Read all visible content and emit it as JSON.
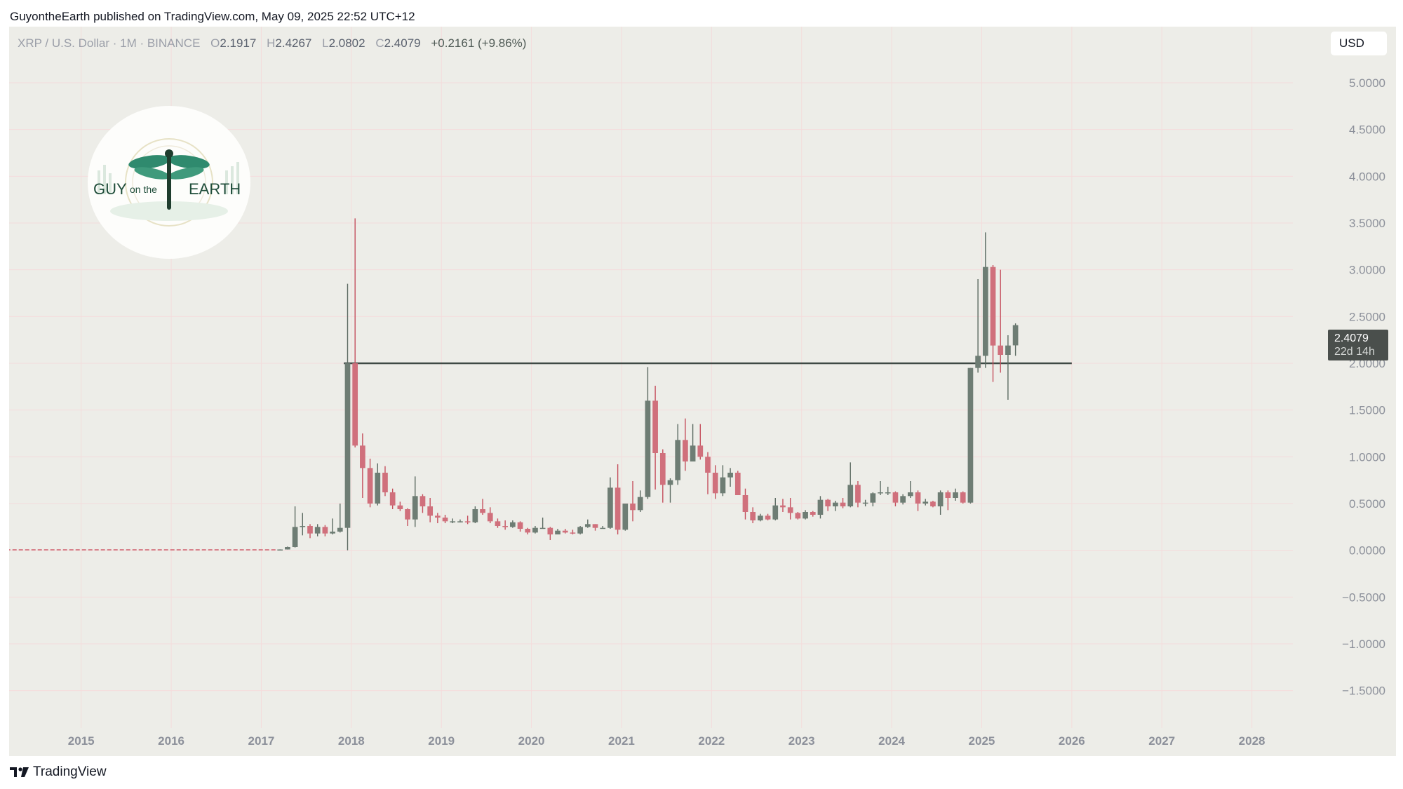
{
  "attribution": "GuyontheEarth published on TradingView.com, May 09, 2025 22:52 UTC+12",
  "legend": {
    "symbol": "XRP / U.S. Dollar · 1M · BINANCE",
    "o_label": "O",
    "o_value": "2.1917",
    "h_label": "H",
    "h_value": "2.4267",
    "l_label": "L",
    "l_value": "2.0802",
    "c_label": "C",
    "c_value": "2.4079",
    "change": "+0.2161 (+9.86%)"
  },
  "currency": "USD",
  "price_label": {
    "value": "2.4079",
    "countdown": "22d 14h"
  },
  "logo_text": {
    "left": "GUY",
    "middle": "on the",
    "right": "EARTH"
  },
  "branding": "TradingView",
  "colors": {
    "up": "#6e7d74",
    "down": "#d0707c",
    "up_wick": "#5c6b62",
    "down_wick": "#c5505e",
    "pre_line": "#d7838c",
    "level_line": "#3f4a45"
  },
  "chart_data": {
    "type": "candlestick",
    "symbol": "XRP / U.S. Dollar",
    "interval": "1M",
    "exchange": "BINANCE",
    "y_ticks": [
      "5.0000",
      "4.5000",
      "4.0000",
      "3.5000",
      "3.0000",
      "2.5000",
      "2.0000",
      "1.5000",
      "1.0000",
      "0.5000",
      "0.0000",
      "−0.5000",
      "−1.0000",
      "−1.5000"
    ],
    "x_ticks": [
      "2015",
      "2016",
      "2017",
      "2018",
      "2019",
      "2020",
      "2021",
      "2022",
      "2023",
      "2024",
      "2025",
      "2026",
      "2027",
      "2028"
    ],
    "ylim": [
      -1.9,
      5.6
    ],
    "xlim": [
      2014.2,
      2029.6
    ],
    "grid": true,
    "horizontal_level": {
      "price": 2.0,
      "from": "2017-12",
      "to": "2026-01"
    },
    "pre_trading_line": {
      "price": 0.005,
      "from": "2014-03",
      "to": "2017-03"
    },
    "candles": [
      {
        "t": "2017-03",
        "o": 0.007,
        "h": 0.01,
        "l": 0.005,
        "c": 0.009
      },
      {
        "t": "2017-04",
        "o": 0.009,
        "h": 0.04,
        "l": 0.008,
        "c": 0.035
      },
      {
        "t": "2017-05",
        "o": 0.035,
        "h": 0.47,
        "l": 0.03,
        "c": 0.25
      },
      {
        "t": "2017-06",
        "o": 0.25,
        "h": 0.4,
        "l": 0.16,
        "c": 0.26
      },
      {
        "t": "2017-07",
        "o": 0.26,
        "h": 0.28,
        "l": 0.13,
        "c": 0.18
      },
      {
        "t": "2017-08",
        "o": 0.18,
        "h": 0.28,
        "l": 0.15,
        "c": 0.25
      },
      {
        "t": "2017-09",
        "o": 0.25,
        "h": 0.27,
        "l": 0.15,
        "c": 0.18
      },
      {
        "t": "2017-10",
        "o": 0.18,
        "h": 0.34,
        "l": 0.17,
        "c": 0.2
      },
      {
        "t": "2017-11",
        "o": 0.2,
        "h": 0.5,
        "l": 0.19,
        "c": 0.24
      },
      {
        "t": "2017-12",
        "o": 0.24,
        "h": 2.85,
        "l": 0.0,
        "c": 2.0
      },
      {
        "t": "2018-01",
        "o": 2.0,
        "h": 3.55,
        "l": 1.1,
        "c": 1.12
      },
      {
        "t": "2018-02",
        "o": 1.12,
        "h": 1.25,
        "l": 0.56,
        "c": 0.88
      },
      {
        "t": "2018-03",
        "o": 0.88,
        "h": 0.98,
        "l": 0.46,
        "c": 0.5
      },
      {
        "t": "2018-04",
        "o": 0.5,
        "h": 0.93,
        "l": 0.48,
        "c": 0.83
      },
      {
        "t": "2018-05",
        "o": 0.83,
        "h": 0.9,
        "l": 0.58,
        "c": 0.62
      },
      {
        "t": "2018-06",
        "o": 0.62,
        "h": 0.66,
        "l": 0.44,
        "c": 0.48
      },
      {
        "t": "2018-07",
        "o": 0.48,
        "h": 0.52,
        "l": 0.42,
        "c": 0.44
      },
      {
        "t": "2018-08",
        "o": 0.44,
        "h": 0.45,
        "l": 0.26,
        "c": 0.33
      },
      {
        "t": "2018-09",
        "o": 0.33,
        "h": 0.79,
        "l": 0.25,
        "c": 0.58
      },
      {
        "t": "2018-10",
        "o": 0.58,
        "h": 0.6,
        "l": 0.4,
        "c": 0.47
      },
      {
        "t": "2018-11",
        "o": 0.47,
        "h": 0.56,
        "l": 0.3,
        "c": 0.37
      },
      {
        "t": "2018-12",
        "o": 0.37,
        "h": 0.4,
        "l": 0.29,
        "c": 0.35
      },
      {
        "t": "2019-01",
        "o": 0.35,
        "h": 0.38,
        "l": 0.29,
        "c": 0.31
      },
      {
        "t": "2019-02",
        "o": 0.31,
        "h": 0.34,
        "l": 0.29,
        "c": 0.31
      },
      {
        "t": "2019-03",
        "o": 0.31,
        "h": 0.33,
        "l": 0.3,
        "c": 0.31
      },
      {
        "t": "2019-04",
        "o": 0.31,
        "h": 0.37,
        "l": 0.28,
        "c": 0.3
      },
      {
        "t": "2019-05",
        "o": 0.3,
        "h": 0.47,
        "l": 0.29,
        "c": 0.44
      },
      {
        "t": "2019-06",
        "o": 0.44,
        "h": 0.55,
        "l": 0.38,
        "c": 0.4
      },
      {
        "t": "2019-07",
        "o": 0.4,
        "h": 0.46,
        "l": 0.29,
        "c": 0.31
      },
      {
        "t": "2019-08",
        "o": 0.31,
        "h": 0.34,
        "l": 0.24,
        "c": 0.26
      },
      {
        "t": "2019-09",
        "o": 0.26,
        "h": 0.32,
        "l": 0.22,
        "c": 0.25
      },
      {
        "t": "2019-10",
        "o": 0.25,
        "h": 0.32,
        "l": 0.24,
        "c": 0.3
      },
      {
        "t": "2019-11",
        "o": 0.3,
        "h": 0.31,
        "l": 0.2,
        "c": 0.23
      },
      {
        "t": "2019-12",
        "o": 0.23,
        "h": 0.24,
        "l": 0.17,
        "c": 0.19
      },
      {
        "t": "2020-01",
        "o": 0.19,
        "h": 0.26,
        "l": 0.18,
        "c": 0.24
      },
      {
        "t": "2020-02",
        "o": 0.24,
        "h": 0.35,
        "l": 0.23,
        "c": 0.24
      },
      {
        "t": "2020-03",
        "o": 0.24,
        "h": 0.25,
        "l": 0.11,
        "c": 0.17
      },
      {
        "t": "2020-04",
        "o": 0.17,
        "h": 0.23,
        "l": 0.17,
        "c": 0.21
      },
      {
        "t": "2020-05",
        "o": 0.21,
        "h": 0.23,
        "l": 0.18,
        "c": 0.19
      },
      {
        "t": "2020-06",
        "o": 0.19,
        "h": 0.22,
        "l": 0.17,
        "c": 0.18
      },
      {
        "t": "2020-07",
        "o": 0.18,
        "h": 0.26,
        "l": 0.17,
        "c": 0.25
      },
      {
        "t": "2020-08",
        "o": 0.25,
        "h": 0.33,
        "l": 0.24,
        "c": 0.28
      },
      {
        "t": "2020-09",
        "o": 0.28,
        "h": 0.28,
        "l": 0.21,
        "c": 0.24
      },
      {
        "t": "2020-10",
        "o": 0.24,
        "h": 0.26,
        "l": 0.23,
        "c": 0.24
      },
      {
        "t": "2020-11",
        "o": 0.24,
        "h": 0.78,
        "l": 0.23,
        "c": 0.67
      },
      {
        "t": "2020-12",
        "o": 0.67,
        "h": 0.92,
        "l": 0.17,
        "c": 0.22
      },
      {
        "t": "2021-01",
        "o": 0.22,
        "h": 0.44,
        "l": 0.21,
        "c": 0.5
      },
      {
        "t": "2021-02",
        "o": 0.5,
        "h": 0.74,
        "l": 0.31,
        "c": 0.43
      },
      {
        "t": "2021-03",
        "o": 0.43,
        "h": 0.64,
        "l": 0.41,
        "c": 0.57
      },
      {
        "t": "2021-04",
        "o": 0.57,
        "h": 1.96,
        "l": 0.55,
        "c": 1.6
      },
      {
        "t": "2021-05",
        "o": 1.6,
        "h": 1.76,
        "l": 0.65,
        "c": 1.04
      },
      {
        "t": "2021-06",
        "o": 1.04,
        "h": 1.08,
        "l": 0.51,
        "c": 0.7
      },
      {
        "t": "2021-07",
        "o": 0.7,
        "h": 0.77,
        "l": 0.51,
        "c": 0.75
      },
      {
        "t": "2021-08",
        "o": 0.75,
        "h": 1.35,
        "l": 0.7,
        "c": 1.18
      },
      {
        "t": "2021-09",
        "o": 1.18,
        "h": 1.41,
        "l": 0.85,
        "c": 0.95
      },
      {
        "t": "2021-10",
        "o": 0.95,
        "h": 1.35,
        "l": 0.95,
        "c": 1.12
      },
      {
        "t": "2021-11",
        "o": 1.12,
        "h": 1.35,
        "l": 0.97,
        "c": 1.0
      },
      {
        "t": "2021-12",
        "o": 1.0,
        "h": 1.05,
        "l": 0.6,
        "c": 0.83
      },
      {
        "t": "2022-01",
        "o": 0.83,
        "h": 0.91,
        "l": 0.55,
        "c": 0.61
      },
      {
        "t": "2022-02",
        "o": 0.61,
        "h": 0.91,
        "l": 0.58,
        "c": 0.78
      },
      {
        "t": "2022-03",
        "o": 0.78,
        "h": 0.88,
        "l": 0.68,
        "c": 0.83
      },
      {
        "t": "2022-04",
        "o": 0.83,
        "h": 0.85,
        "l": 0.59,
        "c": 0.59
      },
      {
        "t": "2022-05",
        "o": 0.59,
        "h": 0.66,
        "l": 0.33,
        "c": 0.41
      },
      {
        "t": "2022-06",
        "o": 0.41,
        "h": 0.46,
        "l": 0.29,
        "c": 0.32
      },
      {
        "t": "2022-07",
        "o": 0.32,
        "h": 0.39,
        "l": 0.31,
        "c": 0.37
      },
      {
        "t": "2022-08",
        "o": 0.37,
        "h": 0.39,
        "l": 0.32,
        "c": 0.33
      },
      {
        "t": "2022-09",
        "o": 0.33,
        "h": 0.56,
        "l": 0.32,
        "c": 0.48
      },
      {
        "t": "2022-10",
        "o": 0.48,
        "h": 0.55,
        "l": 0.41,
        "c": 0.46
      },
      {
        "t": "2022-11",
        "o": 0.46,
        "h": 0.56,
        "l": 0.33,
        "c": 0.4
      },
      {
        "t": "2022-12",
        "o": 0.4,
        "h": 0.41,
        "l": 0.33,
        "c": 0.34
      },
      {
        "t": "2023-01",
        "o": 0.34,
        "h": 0.43,
        "l": 0.33,
        "c": 0.41
      },
      {
        "t": "2023-02",
        "o": 0.41,
        "h": 0.42,
        "l": 0.36,
        "c": 0.38
      },
      {
        "t": "2023-03",
        "o": 0.38,
        "h": 0.58,
        "l": 0.34,
        "c": 0.54
      },
      {
        "t": "2023-04",
        "o": 0.54,
        "h": 0.55,
        "l": 0.42,
        "c": 0.47
      },
      {
        "t": "2023-05",
        "o": 0.47,
        "h": 0.53,
        "l": 0.42,
        "c": 0.51
      },
      {
        "t": "2023-06",
        "o": 0.51,
        "h": 0.56,
        "l": 0.45,
        "c": 0.47
      },
      {
        "t": "2023-07",
        "o": 0.47,
        "h": 0.94,
        "l": 0.46,
        "c": 0.7
      },
      {
        "t": "2023-08",
        "o": 0.7,
        "h": 0.74,
        "l": 0.46,
        "c": 0.51
      },
      {
        "t": "2023-09",
        "o": 0.51,
        "h": 0.54,
        "l": 0.47,
        "c": 0.51
      },
      {
        "t": "2023-10",
        "o": 0.51,
        "h": 0.62,
        "l": 0.47,
        "c": 0.61
      },
      {
        "t": "2023-11",
        "o": 0.61,
        "h": 0.74,
        "l": 0.59,
        "c": 0.62
      },
      {
        "t": "2023-12",
        "o": 0.62,
        "h": 0.68,
        "l": 0.59,
        "c": 0.62
      },
      {
        "t": "2024-01",
        "o": 0.62,
        "h": 0.63,
        "l": 0.47,
        "c": 0.51
      },
      {
        "t": "2024-02",
        "o": 0.51,
        "h": 0.6,
        "l": 0.49,
        "c": 0.58
      },
      {
        "t": "2024-03",
        "o": 0.58,
        "h": 0.74,
        "l": 0.56,
        "c": 0.62
      },
      {
        "t": "2024-04",
        "o": 0.62,
        "h": 0.64,
        "l": 0.42,
        "c": 0.5
      },
      {
        "t": "2024-05",
        "o": 0.5,
        "h": 0.55,
        "l": 0.48,
        "c": 0.52
      },
      {
        "t": "2024-06",
        "o": 0.52,
        "h": 0.53,
        "l": 0.46,
        "c": 0.47
      },
      {
        "t": "2024-07",
        "o": 0.47,
        "h": 0.64,
        "l": 0.38,
        "c": 0.62
      },
      {
        "t": "2024-08",
        "o": 0.62,
        "h": 0.64,
        "l": 0.43,
        "c": 0.56
      },
      {
        "t": "2024-09",
        "o": 0.56,
        "h": 0.66,
        "l": 0.53,
        "c": 0.62
      },
      {
        "t": "2024-10",
        "o": 0.62,
        "h": 0.63,
        "l": 0.5,
        "c": 0.51
      },
      {
        "t": "2024-11",
        "o": 0.51,
        "h": 1.95,
        "l": 0.5,
        "c": 1.95
      },
      {
        "t": "2024-12",
        "o": 1.95,
        "h": 2.9,
        "l": 1.9,
        "c": 2.08
      },
      {
        "t": "2025-01",
        "o": 2.08,
        "h": 3.4,
        "l": 1.95,
        "c": 3.03
      },
      {
        "t": "2025-02",
        "o": 3.03,
        "h": 3.05,
        "l": 1.8,
        "c": 2.19
      },
      {
        "t": "2025-03",
        "o": 2.19,
        "h": 3.0,
        "l": 1.9,
        "c": 2.09
      },
      {
        "t": "2025-04",
        "o": 2.09,
        "h": 2.3,
        "l": 1.61,
        "c": 2.19
      },
      {
        "t": "2025-05",
        "o": 2.1917,
        "h": 2.4267,
        "l": 2.0802,
        "c": 2.4079
      }
    ]
  }
}
